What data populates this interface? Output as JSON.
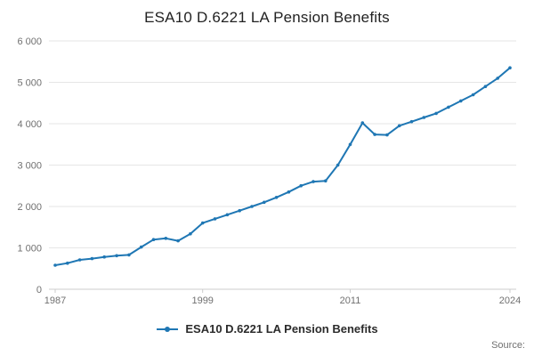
{
  "chart": {
    "title": "ESA10 D.6221 LA Pension Benefits",
    "legend_label": "ESA10 D.6221 LA Pension Benefits",
    "source_label": "Source:",
    "accent_color": "#1f77b4",
    "gridline_color": "#e6e6e6",
    "axis_color": "#cccccc",
    "tick_label_color": "#707070"
  },
  "chart_data": {
    "type": "line",
    "title": "ESA10 D.6221 LA Pension Benefits",
    "legend_position": "bottom",
    "grid": "horizontal",
    "markers": true,
    "xlabel": "",
    "ylabel": "",
    "ylim": [
      0,
      6000
    ],
    "y_ticks": [
      0,
      1000,
      2000,
      3000,
      4000,
      5000,
      6000
    ],
    "y_tick_labels": [
      "0",
      "1 000",
      "2 000",
      "3 000",
      "4 000",
      "5 000",
      "6 000"
    ],
    "x_tick_years": [
      1987,
      1999,
      2011,
      2024
    ],
    "x_tick_labels": [
      "1987",
      "1999",
      "2011",
      "2024"
    ],
    "x": [
      1987,
      1988,
      1989,
      1990,
      1991,
      1992,
      1993,
      1994,
      1995,
      1996,
      1997,
      1998,
      1999,
      2000,
      2001,
      2002,
      2003,
      2004,
      2005,
      2006,
      2007,
      2008,
      2009,
      2010,
      2011,
      2012,
      2013,
      2014,
      2015,
      2016,
      2017,
      2018,
      2019,
      2020,
      2021,
      2022,
      2023,
      2024
    ],
    "series": [
      {
        "name": "ESA10 D.6221 LA Pension Benefits",
        "values": [
          580,
          630,
          710,
          740,
          780,
          810,
          830,
          1020,
          1200,
          1230,
          1170,
          1340,
          1600,
          1700,
          1800,
          1900,
          2000,
          2100,
          2220,
          2350,
          2500,
          2600,
          2620,
          3000,
          3500,
          4020,
          3740,
          3730,
          3950,
          4050,
          4150,
          4250,
          4400,
          4550,
          4700,
          4900,
          5100,
          5350
        ]
      }
    ]
  }
}
